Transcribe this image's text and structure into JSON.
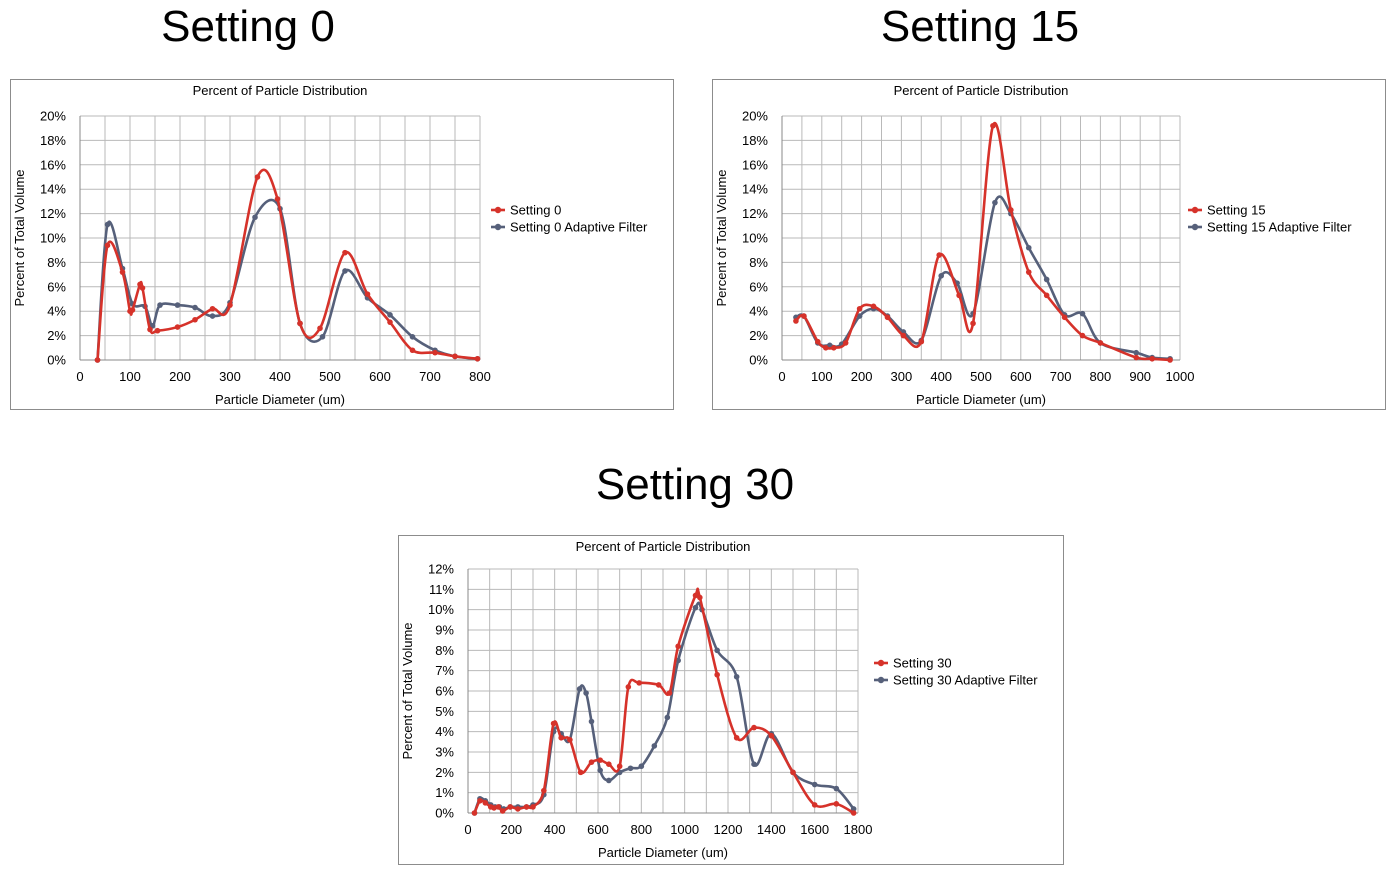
{
  "headings": [
    "Setting 0",
    "Setting 15",
    "Setting 30"
  ],
  "colors": {
    "red": "#d6322a",
    "gray": "#56607a",
    "grid": "#b9b9b9"
  },
  "chart_data": [
    {
      "type": "line",
      "title": "Percent of Particle Distribution",
      "xlabel": "Particle Diameter (um)",
      "ylabel": "Percent of Total Volume",
      "xlim": [
        0,
        800
      ],
      "ylim": [
        0,
        20
      ],
      "xticks": [
        0,
        100,
        200,
        300,
        400,
        500,
        600,
        700,
        800
      ],
      "yticks": [
        0,
        2,
        4,
        6,
        8,
        10,
        12,
        14,
        16,
        18,
        20
      ],
      "grid": true,
      "legend_position": "right",
      "series": [
        {
          "name": "Setting 0",
          "color": "red",
          "x": [
            35,
            55,
            85,
            100,
            105,
            120,
            125,
            140,
            155,
            195,
            230,
            265,
            300,
            355,
            395,
            440,
            480,
            530,
            575,
            620,
            665,
            710,
            750,
            795
          ],
          "y": [
            0,
            9.4,
            7.2,
            4.0,
            4.1,
            6.2,
            5.9,
            2.5,
            2.4,
            2.7,
            3.3,
            4.2,
            4.5,
            15.0,
            13.2,
            3.0,
            2.6,
            8.8,
            5.4,
            3.1,
            0.8,
            0.6,
            0.3,
            0.1
          ]
        },
        {
          "name": "Setting 0 Adaptive Filter",
          "color": "gray",
          "x": [
            35,
            55,
            85,
            105,
            130,
            145,
            160,
            195,
            230,
            265,
            300,
            350,
            400,
            440,
            485,
            530,
            575,
            620,
            665,
            710,
            750,
            795
          ],
          "y": [
            0,
            11.1,
            7.5,
            4.6,
            4.4,
            2.8,
            4.5,
            4.5,
            4.3,
            3.6,
            4.7,
            11.7,
            12.4,
            3.0,
            1.9,
            7.3,
            5.1,
            3.7,
            1.9,
            0.8,
            0.3,
            0.1
          ]
        }
      ]
    },
    {
      "type": "line",
      "title": "Percent of Particle Distribution",
      "xlabel": "Particle Diameter (um)",
      "ylabel": "Percent of Total Volume",
      "xlim": [
        0,
        1000
      ],
      "ylim": [
        0,
        20
      ],
      "xticks": [
        0,
        100,
        200,
        300,
        400,
        500,
        600,
        700,
        800,
        900,
        1000
      ],
      "yticks": [
        0,
        2,
        4,
        6,
        8,
        10,
        12,
        14,
        16,
        18,
        20
      ],
      "grid": true,
      "legend_position": "right",
      "series": [
        {
          "name": "Setting 15",
          "color": "red",
          "x": [
            35,
            55,
            90,
            110,
            130,
            160,
            195,
            230,
            265,
            305,
            350,
            395,
            445,
            480,
            530,
            575,
            620,
            665,
            710,
            755,
            800,
            890,
            930,
            975
          ],
          "y": [
            3.2,
            3.6,
            1.5,
            1.0,
            1.0,
            1.4,
            4.2,
            4.4,
            3.5,
            2.0,
            1.5,
            8.6,
            5.3,
            3.0,
            19.2,
            12.3,
            7.2,
            5.3,
            3.5,
            2.0,
            1.4,
            0.2,
            0.1,
            0.0
          ]
        },
        {
          "name": "Setting 15 Adaptive Filter",
          "color": "gray",
          "x": [
            35,
            55,
            90,
            120,
            150,
            195,
            230,
            265,
            305,
            350,
            400,
            440,
            480,
            535,
            575,
            620,
            665,
            710,
            755,
            800,
            890,
            930,
            975
          ],
          "y": [
            3.5,
            3.6,
            1.4,
            1.2,
            1.3,
            3.6,
            4.2,
            3.6,
            2.3,
            1.6,
            6.9,
            6.3,
            3.8,
            12.9,
            12.0,
            9.2,
            6.6,
            3.7,
            3.8,
            1.4,
            0.6,
            0.2,
            0.1
          ]
        }
      ]
    },
    {
      "type": "line",
      "title": "Percent of Particle Distribution",
      "xlabel": "Particle Diameter (um)",
      "ylabel": "Percent of Total Volume",
      "xlim": [
        0,
        1800
      ],
      "ylim": [
        0,
        12
      ],
      "xticks": [
        0,
        200,
        400,
        600,
        800,
        1000,
        1200,
        1400,
        1600,
        1800
      ],
      "yticks": [
        0,
        1,
        2,
        3,
        4,
        5,
        6,
        7,
        8,
        9,
        10,
        11,
        12
      ],
      "grid": true,
      "legend_position": "right",
      "series": [
        {
          "name": "Setting 30",
          "color": "red",
          "x": [
            30,
            55,
            80,
            105,
            120,
            140,
            160,
            195,
            230,
            270,
            300,
            350,
            395,
            430,
            470,
            520,
            570,
            610,
            650,
            700,
            740,
            790,
            880,
            930,
            970,
            1050,
            1070,
            1150,
            1240,
            1320,
            1400,
            1500,
            1600,
            1700,
            1780
          ],
          "y": [
            0,
            0.6,
            0.5,
            0.3,
            0.25,
            0.3,
            0.1,
            0.3,
            0.2,
            0.3,
            0.3,
            1.1,
            4.4,
            3.7,
            3.6,
            2.0,
            2.5,
            2.6,
            2.4,
            2.3,
            6.2,
            6.4,
            6.3,
            5.9,
            8.2,
            10.7,
            10.6,
            6.8,
            3.7,
            4.2,
            3.8,
            2.0,
            0.4,
            0.45,
            0.0
          ]
        },
        {
          "name": "Setting 30 Adaptive Filter",
          "color": "gray",
          "x": [
            30,
            55,
            80,
            105,
            125,
            145,
            165,
            195,
            230,
            270,
            300,
            350,
            395,
            430,
            470,
            515,
            545,
            570,
            610,
            650,
            700,
            750,
            800,
            860,
            920,
            970,
            1050,
            1080,
            1150,
            1240,
            1320,
            1400,
            1500,
            1600,
            1700,
            1780
          ],
          "y": [
            0,
            0.7,
            0.6,
            0.4,
            0.3,
            0.3,
            0.2,
            0.3,
            0.3,
            0.3,
            0.4,
            0.9,
            4.0,
            3.9,
            3.6,
            6.1,
            5.9,
            4.5,
            2.1,
            1.6,
            2.0,
            2.2,
            2.3,
            3.3,
            4.7,
            7.5,
            10.1,
            10.0,
            8.0,
            6.7,
            2.4,
            3.9,
            2.0,
            1.4,
            1.2,
            0.2
          ]
        }
      ]
    }
  ]
}
